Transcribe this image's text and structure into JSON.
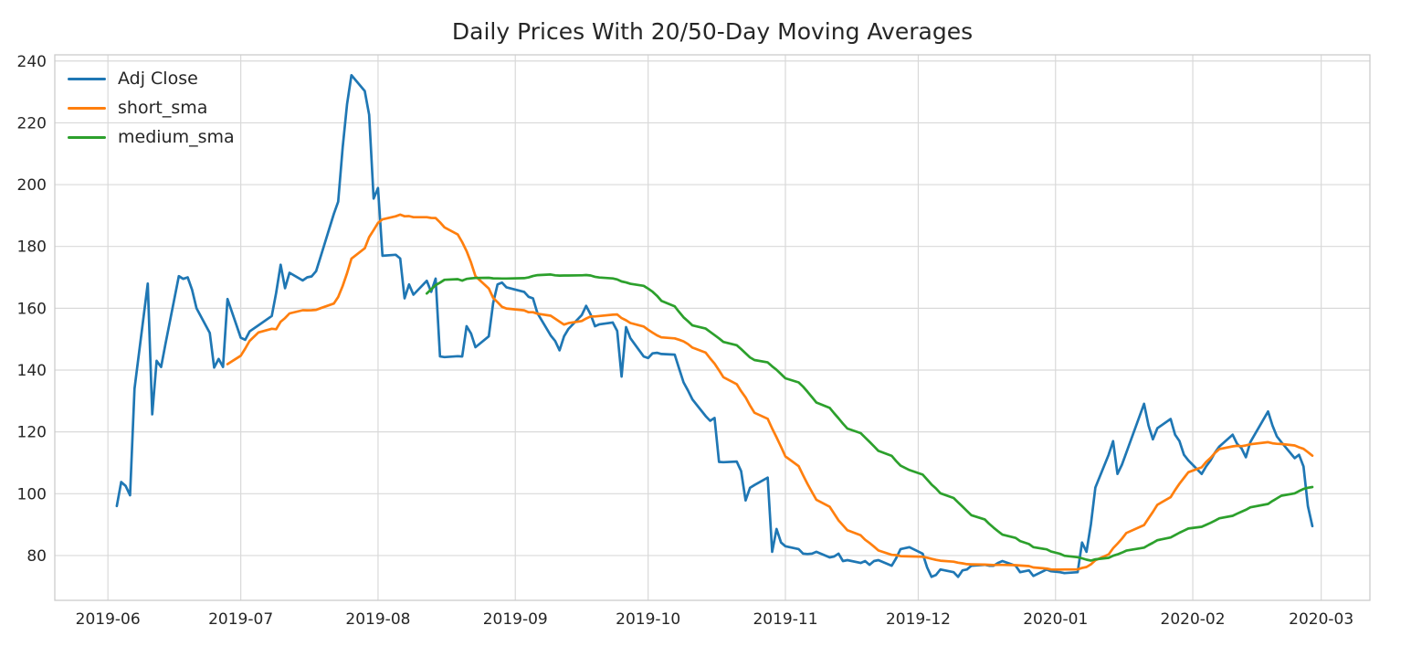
{
  "chart_data": {
    "type": "line",
    "title": "Daily Prices With 20/50-Day Moving Averages",
    "grid": true,
    "legend_position": "upper-left",
    "x_axis": {
      "tick_labels": [
        "2019-06",
        "2019-07",
        "2019-08",
        "2019-09",
        "2019-10",
        "2019-11",
        "2019-12",
        "2020-01",
        "2020-02",
        "2020-03"
      ],
      "tick_dates": [
        "2019-06-01",
        "2019-07-01",
        "2019-08-01",
        "2019-09-01",
        "2019-10-01",
        "2019-11-01",
        "2019-12-01",
        "2020-01-01",
        "2020-02-01",
        "2020-03-01"
      ],
      "range": [
        "2019-05-20",
        "2020-03-12"
      ]
    },
    "y_axis": {
      "ticks": [
        80,
        100,
        120,
        140,
        160,
        180,
        200,
        220,
        240
      ],
      "range": [
        65.5,
        242
      ]
    },
    "series": [
      {
        "name": "Adj Close",
        "color": "#1f77b4",
        "kind": "raw"
      },
      {
        "name": "short_sma",
        "color": "#ff7f0e",
        "kind": "sma",
        "window": 20
      },
      {
        "name": "medium_sma",
        "color": "#2ca02c",
        "kind": "sma",
        "window": 50
      }
    ],
    "dates": [
      "2019-06-03",
      "2019-06-04",
      "2019-06-05",
      "2019-06-06",
      "2019-06-07",
      "2019-06-10",
      "2019-06-11",
      "2019-06-12",
      "2019-06-13",
      "2019-06-14",
      "2019-06-17",
      "2019-06-18",
      "2019-06-19",
      "2019-06-20",
      "2019-06-21",
      "2019-06-24",
      "2019-06-25",
      "2019-06-26",
      "2019-06-27",
      "2019-06-28",
      "2019-07-01",
      "2019-07-02",
      "2019-07-03",
      "2019-07-05",
      "2019-07-08",
      "2019-07-09",
      "2019-07-10",
      "2019-07-11",
      "2019-07-12",
      "2019-07-15",
      "2019-07-16",
      "2019-07-17",
      "2019-07-18",
      "2019-07-19",
      "2019-07-22",
      "2019-07-23",
      "2019-07-24",
      "2019-07-25",
      "2019-07-26",
      "2019-07-29",
      "2019-07-30",
      "2019-07-31",
      "2019-08-01",
      "2019-08-02",
      "2019-08-05",
      "2019-08-06",
      "2019-08-07",
      "2019-08-08",
      "2019-08-09",
      "2019-08-12",
      "2019-08-13",
      "2019-08-14",
      "2019-08-15",
      "2019-08-16",
      "2019-08-19",
      "2019-08-20",
      "2019-08-21",
      "2019-08-22",
      "2019-08-23",
      "2019-08-26",
      "2019-08-27",
      "2019-08-28",
      "2019-08-29",
      "2019-08-30",
      "2019-09-03",
      "2019-09-04",
      "2019-09-05",
      "2019-09-06",
      "2019-09-09",
      "2019-09-10",
      "2019-09-11",
      "2019-09-12",
      "2019-09-13",
      "2019-09-16",
      "2019-09-17",
      "2019-09-18",
      "2019-09-19",
      "2019-09-20",
      "2019-09-23",
      "2019-09-24",
      "2019-09-25",
      "2019-09-26",
      "2019-09-27",
      "2019-09-30",
      "2019-10-01",
      "2019-10-02",
      "2019-10-03",
      "2019-10-04",
      "2019-10-07",
      "2019-10-08",
      "2019-10-09",
      "2019-10-10",
      "2019-10-11",
      "2019-10-14",
      "2019-10-15",
      "2019-10-16",
      "2019-10-17",
      "2019-10-18",
      "2019-10-21",
      "2019-10-22",
      "2019-10-23",
      "2019-10-24",
      "2019-10-25",
      "2019-10-28",
      "2019-10-29",
      "2019-10-30",
      "2019-10-31",
      "2019-11-01",
      "2019-11-04",
      "2019-11-05",
      "2019-11-06",
      "2019-11-07",
      "2019-11-08",
      "2019-11-11",
      "2019-11-12",
      "2019-11-13",
      "2019-11-14",
      "2019-11-15",
      "2019-11-18",
      "2019-11-19",
      "2019-11-20",
      "2019-11-21",
      "2019-11-22",
      "2019-11-25",
      "2019-11-26",
      "2019-11-27",
      "2019-11-29",
      "2019-12-02",
      "2019-12-03",
      "2019-12-04",
      "2019-12-05",
      "2019-12-06",
      "2019-12-09",
      "2019-12-10",
      "2019-12-11",
      "2019-12-12",
      "2019-12-13",
      "2019-12-16",
      "2019-12-17",
      "2019-12-18",
      "2019-12-19",
      "2019-12-20",
      "2019-12-23",
      "2019-12-24",
      "2019-12-26",
      "2019-12-27",
      "2019-12-30",
      "2019-12-31",
      "2020-01-02",
      "2020-01-03",
      "2020-01-06",
      "2020-01-07",
      "2020-01-08",
      "2020-01-09",
      "2020-01-10",
      "2020-01-13",
      "2020-01-14",
      "2020-01-15",
      "2020-01-16",
      "2020-01-17",
      "2020-01-21",
      "2020-01-22",
      "2020-01-23",
      "2020-01-24",
      "2020-01-27",
      "2020-01-28",
      "2020-01-29",
      "2020-01-30",
      "2020-01-31",
      "2020-02-03",
      "2020-02-04",
      "2020-02-05",
      "2020-02-06",
      "2020-02-07",
      "2020-02-10",
      "2020-02-11",
      "2020-02-12",
      "2020-02-13",
      "2020-02-14",
      "2020-02-18",
      "2020-02-19",
      "2020-02-20",
      "2020-02-21",
      "2020-02-24",
      "2020-02-25",
      "2020-02-26",
      "2020-02-27",
      "2020-02-28"
    ],
    "adj_close": [
      96.0,
      103.8,
      102.5,
      99.5,
      134.0,
      168.0,
      125.7,
      143.0,
      141.0,
      148.5,
      170.4,
      169.5,
      170.0,
      166.0,
      160.0,
      152.0,
      140.8,
      143.6,
      141.0,
      163.0,
      150.5,
      149.8,
      152.5,
      154.5,
      157.5,
      165.0,
      174.1,
      166.5,
      171.5,
      169.0,
      170.0,
      170.3,
      172.0,
      176.5,
      190.5,
      194.5,
      212.0,
      226.0,
      235.4,
      230.3,
      222.6,
      195.5,
      198.9,
      177.0,
      177.3,
      176.1,
      163.2,
      167.7,
      164.4,
      168.9,
      165.3,
      169.6,
      144.4,
      144.2,
      144.5,
      144.4,
      154.2,
      151.8,
      147.4,
      150.9,
      161.7,
      167.7,
      168.3,
      166.8,
      165.3,
      163.7,
      163.2,
      158.4,
      151.2,
      149.4,
      146.4,
      150.9,
      153.3,
      157.8,
      160.8,
      158.0,
      154.2,
      154.8,
      155.4,
      152.7,
      137.9,
      153.9,
      150.3,
      144.4,
      143.9,
      145.4,
      145.6,
      145.2,
      145.0,
      140.5,
      136.0,
      133.4,
      130.5,
      125.1,
      123.6,
      124.5,
      110.3,
      110.2,
      110.4,
      107.3,
      97.8,
      101.9,
      102.8,
      105.2,
      81.2,
      88.6,
      84.2,
      83.0,
      82.1,
      80.6,
      80.5,
      80.6,
      81.2,
      79.4,
      79.7,
      80.6,
      78.2,
      78.5,
      77.6,
      78.2,
      77.0,
      78.2,
      78.5,
      76.7,
      79.1,
      82.1,
      82.7,
      80.6,
      76.1,
      73.1,
      73.7,
      75.5,
      74.6,
      73.1,
      75.2,
      75.5,
      76.7,
      77.0,
      76.7,
      76.7,
      77.6,
      78.2,
      76.7,
      74.6,
      75.2,
      73.4,
      75.5,
      74.9,
      74.6,
      74.3,
      74.6,
      84.2,
      81.2,
      90.1,
      102.0,
      112.6,
      117.0,
      106.4,
      109.4,
      113.3,
      129.1,
      122.1,
      117.6,
      121.2,
      124.2,
      119.1,
      117.0,
      112.6,
      110.8,
      106.4,
      108.8,
      110.8,
      113.3,
      115.3,
      119.1,
      116.2,
      114.7,
      111.8,
      116.7,
      126.6,
      122.1,
      118.5,
      116.7,
      111.5,
      112.6,
      108.8,
      96.0,
      89.5
    ]
  },
  "styles": {
    "grid_color": "#d9d9d9",
    "spine_color": "#cccccc",
    "text_color": "#262626",
    "background": "#ffffff",
    "line_width": 2.7
  }
}
